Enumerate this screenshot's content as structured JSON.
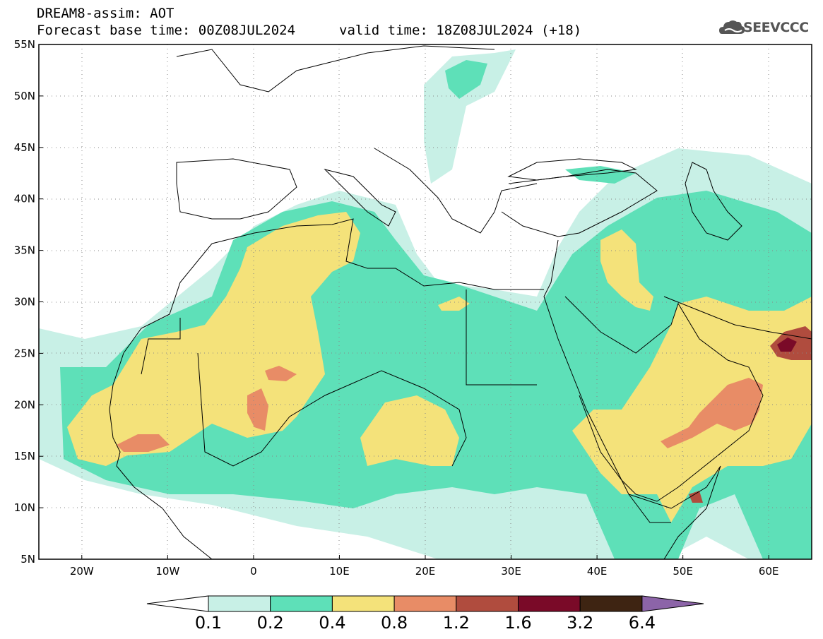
{
  "header": {
    "line1": "DREAM8-assim: AOT",
    "line2": "Forecast base time: 00Z08JUL2024",
    "valid": "valid time: 18Z08JUL2024 (+18)",
    "logo": "SEEVCCC"
  },
  "map": {
    "lon_range": [
      -25,
      65
    ],
    "lat_range": [
      5,
      55
    ],
    "lon_ticks": [
      {
        "lon": -20,
        "label": "20W"
      },
      {
        "lon": -10,
        "label": "10W"
      },
      {
        "lon": 0,
        "label": "0"
      },
      {
        "lon": 10,
        "label": "10E"
      },
      {
        "lon": 20,
        "label": "20E"
      },
      {
        "lon": 30,
        "label": "30E"
      },
      {
        "lon": 40,
        "label": "40E"
      },
      {
        "lon": 50,
        "label": "50E"
      },
      {
        "lon": 60,
        "label": "60E"
      }
    ],
    "lat_ticks": [
      {
        "lat": 5,
        "label": "5N"
      },
      {
        "lat": 10,
        "label": "10N"
      },
      {
        "lat": 15,
        "label": "15N"
      },
      {
        "lat": 20,
        "label": "20N"
      },
      {
        "lat": 25,
        "label": "25N"
      },
      {
        "lat": 30,
        "label": "30N"
      },
      {
        "lat": 35,
        "label": "35N"
      },
      {
        "lat": 40,
        "label": "40N"
      },
      {
        "lat": 45,
        "label": "45N"
      },
      {
        "lat": 50,
        "label": "50N"
      },
      {
        "lat": 55,
        "label": "55N"
      }
    ],
    "colors": {
      "c01": "#c8f0e6",
      "c02": "#5ee0b8",
      "c04": "#f4e27a",
      "c08": "#e88c66",
      "c12": "#b04c3e",
      "c16": "#7a0a28",
      "c32": "#3e2412",
      "c64": "#8c64a8"
    }
  },
  "colorbar": {
    "labels": [
      "0.1",
      "0.2",
      "0.4",
      "0.8",
      "1.2",
      "1.6",
      "3.2",
      "6.4"
    ],
    "colors": [
      "#c8f0e6",
      "#5ee0b8",
      "#f4e27a",
      "#e88c66",
      "#b04c3e",
      "#7a0a28",
      "#3e2412"
    ],
    "over_color": "#8c64a8",
    "under_color": "#ffffff"
  }
}
